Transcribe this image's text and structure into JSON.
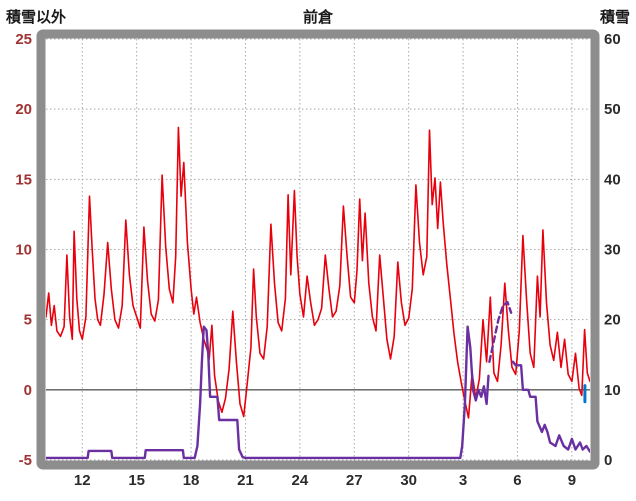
{
  "chart_data": {
    "type": "line",
    "title": "前倉",
    "frame_color": "#8d8d8d",
    "grid": {
      "color": "#a8a8a8",
      "zero_color": "#5a5a5a"
    },
    "left_axis": {
      "title": "積雪以外",
      "min": -5,
      "max": 25,
      "ticks": [
        25,
        20,
        15,
        10,
        5,
        0,
        -5
      ],
      "color": "#a03333"
    },
    "right_axis": {
      "title": "積雪",
      "min": 0,
      "max": 60,
      "ticks": [
        60,
        50,
        40,
        30,
        20,
        10,
        0
      ],
      "color": "#2b2b2b"
    },
    "x_axis": {
      "min": 10,
      "max": 40,
      "color": "#2b2b2b",
      "tick_positions": [
        12,
        15,
        18,
        21,
        24,
        27,
        30,
        33,
        36,
        39
      ],
      "tick_labels": [
        "12",
        "15",
        "18",
        "21",
        "24",
        "27",
        "30",
        "3",
        "6",
        "9"
      ]
    },
    "series": [
      {
        "name": "積雪以外",
        "axis": "left",
        "color": "#e8000d",
        "width": 1.6,
        "style": "solid",
        "points": [
          [
            10.0,
            5.2
          ],
          [
            10.15,
            6.9
          ],
          [
            10.3,
            4.6
          ],
          [
            10.45,
            6.0
          ],
          [
            10.6,
            4.2
          ],
          [
            10.8,
            3.8
          ],
          [
            11.0,
            4.5
          ],
          [
            11.15,
            9.6
          ],
          [
            11.3,
            5.2
          ],
          [
            11.45,
            3.6
          ],
          [
            11.55,
            11.3
          ],
          [
            11.7,
            6.5
          ],
          [
            11.85,
            4.2
          ],
          [
            12.0,
            3.6
          ],
          [
            12.2,
            5.2
          ],
          [
            12.4,
            13.8
          ],
          [
            12.55,
            10.0
          ],
          [
            12.7,
            6.5
          ],
          [
            12.85,
            5.0
          ],
          [
            13.0,
            4.6
          ],
          [
            13.2,
            6.8
          ],
          [
            13.4,
            10.5
          ],
          [
            13.6,
            7.2
          ],
          [
            13.8,
            5.0
          ],
          [
            14.0,
            4.4
          ],
          [
            14.2,
            6.0
          ],
          [
            14.4,
            12.1
          ],
          [
            14.6,
            8.2
          ],
          [
            14.8,
            6.0
          ],
          [
            15.0,
            5.2
          ],
          [
            15.2,
            4.4
          ],
          [
            15.4,
            11.6
          ],
          [
            15.6,
            7.8
          ],
          [
            15.8,
            5.4
          ],
          [
            16.0,
            4.9
          ],
          [
            16.2,
            6.4
          ],
          [
            16.4,
            15.3
          ],
          [
            16.6,
            10.2
          ],
          [
            16.8,
            7.2
          ],
          [
            17.0,
            6.2
          ],
          [
            17.15,
            9.5
          ],
          [
            17.3,
            18.7
          ],
          [
            17.45,
            13.8
          ],
          [
            17.6,
            16.2
          ],
          [
            17.8,
            10.5
          ],
          [
            18.0,
            7.2
          ],
          [
            18.15,
            5.4
          ],
          [
            18.3,
            6.6
          ],
          [
            18.5,
            4.8
          ],
          [
            18.7,
            3.6
          ],
          [
            18.9,
            2.8
          ],
          [
            19.0,
            2.2
          ],
          [
            19.15,
            4.6
          ],
          [
            19.3,
            1.0
          ],
          [
            19.5,
            -0.8
          ],
          [
            19.7,
            -1.6
          ],
          [
            19.9,
            -0.6
          ],
          [
            20.1,
            1.5
          ],
          [
            20.3,
            5.6
          ],
          [
            20.5,
            2.0
          ],
          [
            20.7,
            -1.0
          ],
          [
            20.9,
            -1.9
          ],
          [
            21.1,
            0.5
          ],
          [
            21.3,
            3.0
          ],
          [
            21.45,
            8.6
          ],
          [
            21.6,
            5.2
          ],
          [
            21.8,
            2.6
          ],
          [
            22.0,
            2.2
          ],
          [
            22.2,
            4.5
          ],
          [
            22.4,
            11.8
          ],
          [
            22.6,
            7.6
          ],
          [
            22.8,
            4.8
          ],
          [
            23.0,
            4.2
          ],
          [
            23.2,
            6.5
          ],
          [
            23.35,
            13.9
          ],
          [
            23.5,
            8.2
          ],
          [
            23.7,
            14.2
          ],
          [
            23.85,
            9.5
          ],
          [
            24.0,
            6.8
          ],
          [
            24.2,
            5.2
          ],
          [
            24.4,
            8.1
          ],
          [
            24.6,
            6.2
          ],
          [
            24.8,
            4.6
          ],
          [
            25.0,
            5.0
          ],
          [
            25.2,
            5.8
          ],
          [
            25.4,
            9.6
          ],
          [
            25.6,
            7.2
          ],
          [
            25.8,
            5.2
          ],
          [
            26.0,
            5.6
          ],
          [
            26.2,
            7.4
          ],
          [
            26.4,
            13.1
          ],
          [
            26.6,
            9.6
          ],
          [
            26.8,
            6.6
          ],
          [
            27.0,
            6.2
          ],
          [
            27.15,
            8.5
          ],
          [
            27.3,
            13.6
          ],
          [
            27.45,
            9.2
          ],
          [
            27.6,
            12.6
          ],
          [
            27.8,
            7.6
          ],
          [
            28.0,
            5.2
          ],
          [
            28.2,
            4.2
          ],
          [
            28.4,
            9.6
          ],
          [
            28.6,
            6.6
          ],
          [
            28.8,
            3.6
          ],
          [
            29.0,
            2.2
          ],
          [
            29.2,
            3.8
          ],
          [
            29.4,
            9.1
          ],
          [
            29.6,
            6.2
          ],
          [
            29.8,
            4.6
          ],
          [
            30.0,
            5.1
          ],
          [
            30.2,
            7.2
          ],
          [
            30.4,
            14.6
          ],
          [
            30.6,
            10.5
          ],
          [
            30.8,
            8.2
          ],
          [
            31.0,
            9.5
          ],
          [
            31.15,
            18.5
          ],
          [
            31.3,
            13.2
          ],
          [
            31.45,
            15.1
          ],
          [
            31.6,
            11.5
          ],
          [
            31.75,
            14.8
          ],
          [
            31.9,
            12.0
          ],
          [
            32.1,
            9.0
          ],
          [
            32.3,
            6.5
          ],
          [
            32.5,
            4.0
          ],
          [
            32.7,
            2.0
          ],
          [
            32.9,
            0.5
          ],
          [
            33.1,
            -0.8
          ],
          [
            33.3,
            -2.0
          ],
          [
            33.5,
            1.2
          ],
          [
            33.7,
            -0.6
          ],
          [
            33.9,
            0.8
          ],
          [
            34.1,
            5.0
          ],
          [
            34.3,
            2.0
          ],
          [
            34.5,
            6.6
          ],
          [
            34.7,
            1.2
          ],
          [
            34.9,
            0.6
          ],
          [
            35.1,
            3.2
          ],
          [
            35.3,
            7.6
          ],
          [
            35.5,
            4.2
          ],
          [
            35.7,
            1.6
          ],
          [
            35.9,
            1.1
          ],
          [
            36.1,
            4.2
          ],
          [
            36.3,
            11.0
          ],
          [
            36.5,
            6.5
          ],
          [
            36.7,
            2.6
          ],
          [
            36.9,
            1.6
          ],
          [
            37.1,
            8.1
          ],
          [
            37.25,
            5.2
          ],
          [
            37.4,
            11.4
          ],
          [
            37.6,
            6.2
          ],
          [
            37.8,
            3.2
          ],
          [
            38.0,
            2.1
          ],
          [
            38.2,
            4.1
          ],
          [
            38.4,
            1.6
          ],
          [
            38.6,
            3.6
          ],
          [
            38.8,
            1.1
          ],
          [
            39.0,
            0.6
          ],
          [
            39.2,
            2.6
          ],
          [
            39.4,
            0.1
          ],
          [
            39.55,
            -0.4
          ],
          [
            39.7,
            4.3
          ],
          [
            39.85,
            1.2
          ],
          [
            40.0,
            0.6
          ]
        ]
      },
      {
        "name": "積雪",
        "axis": "right",
        "color": "#6a2fa0",
        "width": 2.4,
        "style": "solid",
        "points": [
          [
            10.0,
            0.3
          ],
          [
            12.3,
            0.3
          ],
          [
            12.35,
            1.3
          ],
          [
            13.6,
            1.3
          ],
          [
            13.65,
            0.3
          ],
          [
            15.45,
            0.3
          ],
          [
            15.5,
            1.4
          ],
          [
            17.55,
            1.4
          ],
          [
            17.6,
            0.3
          ],
          [
            18.2,
            0.3
          ],
          [
            18.35,
            2.0
          ],
          [
            18.5,
            8.0
          ],
          [
            18.6,
            14.0
          ],
          [
            18.7,
            19.0
          ],
          [
            18.85,
            18.5
          ],
          [
            18.95,
            15.0
          ],
          [
            19.05,
            9.0
          ],
          [
            19.45,
            9.0
          ],
          [
            19.55,
            5.7
          ],
          [
            20.55,
            5.7
          ],
          [
            20.65,
            1.5
          ],
          [
            20.85,
            0.4
          ],
          [
            21.0,
            0.3
          ],
          [
            32.85,
            0.3
          ],
          [
            32.95,
            2.0
          ],
          [
            33.1,
            8.0
          ],
          [
            33.25,
            19.0
          ],
          [
            33.4,
            16.0
          ],
          [
            33.55,
            10.0
          ],
          [
            33.7,
            8.5
          ],
          [
            33.85,
            10.0
          ],
          [
            34.0,
            9.0
          ],
          [
            34.15,
            10.5
          ],
          [
            34.3,
            8.0
          ],
          [
            34.4,
            12.0
          ]
        ]
      },
      {
        "name": "積雪(破線)",
        "axis": "right",
        "color": "#6a2fa0",
        "width": 2.4,
        "style": "dashed",
        "points": [
          [
            34.45,
            14.0
          ],
          [
            34.7,
            17.0
          ],
          [
            34.95,
            20.0
          ],
          [
            35.2,
            22.0
          ],
          [
            35.45,
            22.5
          ],
          [
            35.65,
            21.0
          ]
        ]
      },
      {
        "name": "積雪(続き)",
        "axis": "right",
        "color": "#6a2fa0",
        "width": 2.4,
        "style": "solid",
        "points": [
          [
            35.75,
            14.0
          ],
          [
            35.9,
            13.5
          ],
          [
            36.2,
            13.5
          ],
          [
            36.3,
            10.0
          ],
          [
            36.6,
            10.0
          ],
          [
            36.7,
            9.0
          ],
          [
            37.0,
            9.0
          ],
          [
            37.1,
            5.5
          ],
          [
            37.35,
            4.0
          ],
          [
            37.5,
            5.0
          ],
          [
            37.65,
            4.0
          ],
          [
            37.8,
            2.5
          ],
          [
            38.1,
            2.0
          ],
          [
            38.3,
            3.5
          ],
          [
            38.55,
            2.0
          ],
          [
            38.8,
            1.5
          ],
          [
            39.0,
            3.0
          ],
          [
            39.2,
            1.5
          ],
          [
            39.45,
            2.5
          ],
          [
            39.6,
            1.5
          ],
          [
            39.8,
            2.0
          ],
          [
            40.0,
            1.2
          ]
        ]
      },
      {
        "name": "青マーク",
        "axis": "right",
        "color": "#0077cc",
        "width": 3,
        "style": "solid",
        "points": [
          [
            39.72,
            8.3
          ],
          [
            39.72,
            10.6
          ]
        ]
      }
    ]
  },
  "header": {
    "left_axis_title": "積雪以外",
    "station_title": "前倉",
    "right_axis_title": "積雪"
  }
}
